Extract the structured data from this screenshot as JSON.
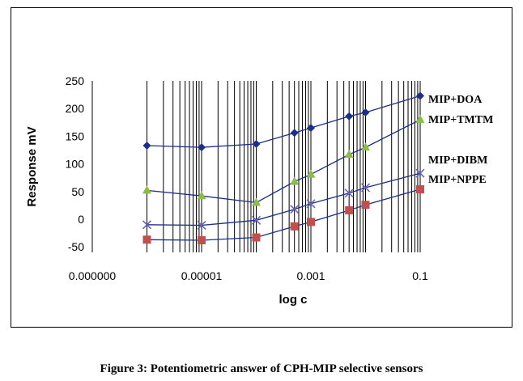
{
  "caption": "Figure 3: Potentiometric answer of CPH-MIP selective sensors",
  "chart_data": {
    "type": "line",
    "xlabel": "log c",
    "ylabel": "Response mV",
    "x_scale": "log",
    "xlim": [
      1e-07,
      0.1
    ],
    "ylim": [
      -60,
      250
    ],
    "x_tick_labels": [
      {
        "value": 1e-07,
        "label": "0.000000"
      },
      {
        "value": 1e-05,
        "label": "0.00001"
      },
      {
        "value": 0.001,
        "label": "0.001"
      },
      {
        "value": 0.1,
        "label": "0.1"
      }
    ],
    "y_ticks": [
      250,
      200,
      150,
      100,
      50,
      0,
      -50
    ],
    "grid": "vertical log-decade lines",
    "x": [
      1e-06,
      1e-05,
      0.0001,
      0.0005,
      0.001,
      0.005,
      0.01,
      0.1
    ],
    "series": [
      {
        "name": "MIP+DOA",
        "color": "#1c2e8a",
        "marker": "diamond",
        "values": [
          133,
          130,
          136,
          156,
          165,
          186,
          193,
          223
        ]
      },
      {
        "name": "MIP+TMTM",
        "color": "#8dbb4a",
        "marker": "triangle",
        "values": [
          52,
          42,
          30,
          68,
          81,
          117,
          130,
          180
        ]
      },
      {
        "name": "MIP+DIBM",
        "color": "#6b64b8",
        "marker": "cross",
        "values": [
          -10,
          -11,
          -2,
          18,
          28,
          47,
          57,
          83
        ]
      },
      {
        "name": "MIP+NPPE",
        "color": "#c0504d",
        "marker": "square",
        "values": [
          -37,
          -38,
          -33,
          -13,
          -5,
          16,
          26,
          54
        ]
      }
    ]
  }
}
